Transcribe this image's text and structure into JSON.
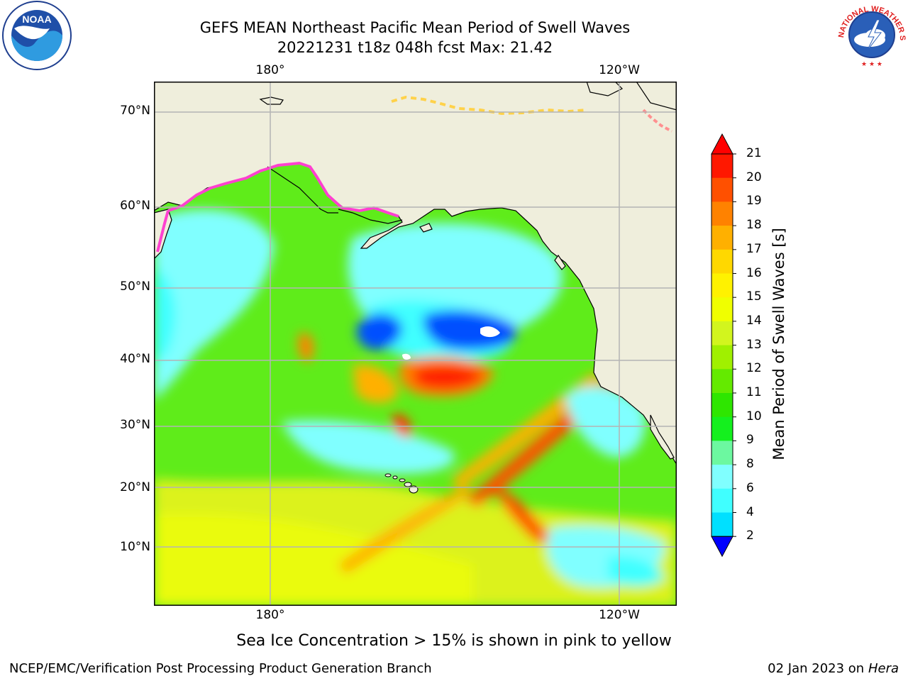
{
  "header": {
    "line1": "GEFS MEAN Northeast Pacific Mean Period of Swell Waves",
    "line2": "20221231 t18z 048h fcst   Max: 21.42"
  },
  "axes": {
    "top_x_ticks": [
      "180°",
      "120°W"
    ],
    "bottom_x_ticks": [
      "180°",
      "120°W"
    ],
    "y_ticks": [
      "70°N",
      "60°N",
      "50°N",
      "40°N",
      "30°N",
      "20°N",
      "10°N"
    ]
  },
  "colorbar": {
    "title": "Mean Period of Swell Waves [s]",
    "labels": [
      "21",
      "20",
      "19",
      "18",
      "17",
      "16",
      "15",
      "14",
      "13",
      "12",
      "11",
      "10",
      "9",
      "8",
      "6",
      "4",
      "2"
    ],
    "colors": [
      "#ff1800",
      "#ff5000",
      "#ff8200",
      "#ffb000",
      "#ffd800",
      "#fff200",
      "#f0ff00",
      "#d2f51e",
      "#a0f000",
      "#64ea00",
      "#2ee600",
      "#14f01e",
      "#6cf8a0",
      "#80ffff",
      "#40ffff",
      "#00e0ff",
      "#0060ff"
    ],
    "under_color": "#0000ff",
    "over_color": "#ff0000"
  },
  "map": {
    "land_color": "#efeedc",
    "grid_color": "#b4b4b4",
    "ice_colors": [
      "#ff40d0",
      "#ff9090",
      "#ffd24a"
    ]
  },
  "footer": {
    "note": "Sea Ice Concentration > 15% is shown in pink to yellow",
    "left": "NCEP/EMC/Verification Post Processing Product Generation Branch",
    "right_prefix": "02 Jan 2023 on ",
    "right_italic": "Hera"
  },
  "logos": {
    "noaa_text": "NOAA",
    "nws_text": "NATIONAL WEATHER SERVICE"
  }
}
